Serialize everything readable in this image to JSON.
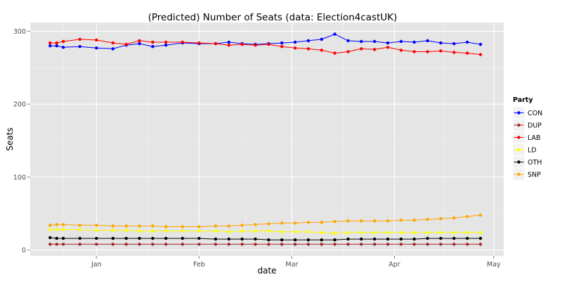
{
  "chart_data": {
    "type": "line",
    "title": "(Predicted) Number of Seats (data: Election4castUK)",
    "xlabel": "date",
    "ylabel": "Seats",
    "x_ticks": [
      "Jan",
      "Feb",
      "Mar",
      "Apr",
      "May"
    ],
    "y_ticks": [
      0,
      100,
      200,
      300
    ],
    "xlim": [
      "2014-12-12",
      "2015-05-04"
    ],
    "ylim": [
      -8,
      312
    ],
    "grid": true,
    "legend": {
      "title": "Party",
      "placement": "right"
    },
    "x": [
      "2014-12-18",
      "2014-12-20",
      "2014-12-22",
      "2014-12-27",
      "2015-01-01",
      "2015-01-06",
      "2015-01-10",
      "2015-01-14",
      "2015-01-18",
      "2015-01-22",
      "2015-01-27",
      "2015-02-01",
      "2015-02-06",
      "2015-02-10",
      "2015-02-14",
      "2015-02-18",
      "2015-02-22",
      "2015-02-26",
      "2015-03-02",
      "2015-03-06",
      "2015-03-10",
      "2015-03-14",
      "2015-03-18",
      "2015-03-22",
      "2015-03-26",
      "2015-03-30",
      "2015-04-03",
      "2015-04-07",
      "2015-04-11",
      "2015-04-15",
      "2015-04-19",
      "2015-04-23",
      "2015-04-27"
    ],
    "series": [
      {
        "name": "CON",
        "color": "#0000ff",
        "values": [
          280,
          280,
          278,
          279,
          277,
          276,
          281,
          283,
          279,
          281,
          284,
          283,
          283,
          285,
          283,
          282,
          283,
          284,
          285,
          287,
          289,
          296,
          287,
          286,
          286,
          284,
          286,
          285,
          287,
          284,
          283,
          285,
          282
        ]
      },
      {
        "name": "DUP",
        "color": "#a52a2a",
        "values": [
          8,
          8,
          8,
          8,
          8,
          8,
          8,
          8,
          8,
          8,
          8,
          8,
          8,
          8,
          8,
          8,
          8,
          8,
          8,
          8,
          8,
          8,
          8,
          8,
          8,
          8,
          8,
          8,
          8,
          8,
          8,
          8,
          8
        ]
      },
      {
        "name": "LAB",
        "color": "#ff0000",
        "values": [
          284,
          284,
          286,
          289,
          288,
          284,
          282,
          287,
          285,
          285,
          285,
          284,
          283,
          281,
          282,
          281,
          282,
          279,
          277,
          276,
          274,
          270,
          272,
          276,
          275,
          278,
          274,
          272,
          272,
          273,
          271,
          270,
          268
        ]
      },
      {
        "name": "LD",
        "color": "#ffff00",
        "values": [
          28,
          28,
          28,
          28,
          27,
          27,
          27,
          26,
          26,
          26,
          26,
          26,
          26,
          25,
          26,
          26,
          26,
          25,
          25,
          25,
          24,
          23,
          24,
          24,
          24,
          24,
          24,
          24,
          24,
          24,
          24,
          24,
          24
        ]
      },
      {
        "name": "OTH",
        "color": "#000000",
        "values": [
          17,
          16,
          16,
          16,
          16,
          16,
          16,
          16,
          16,
          16,
          16,
          16,
          15,
          15,
          15,
          15,
          14,
          14,
          14,
          14,
          14,
          14,
          15,
          15,
          15,
          15,
          15,
          15,
          16,
          16,
          16,
          16,
          16
        ]
      },
      {
        "name": "SNP",
        "color": "#ffa500",
        "values": [
          34,
          35,
          35,
          34,
          34,
          33,
          33,
          33,
          33,
          32,
          32,
          32,
          33,
          33,
          34,
          35,
          36,
          37,
          37,
          38,
          38,
          39,
          40,
          40,
          40,
          40,
          41,
          41,
          42,
          43,
          44,
          46,
          48
        ]
      }
    ]
  }
}
